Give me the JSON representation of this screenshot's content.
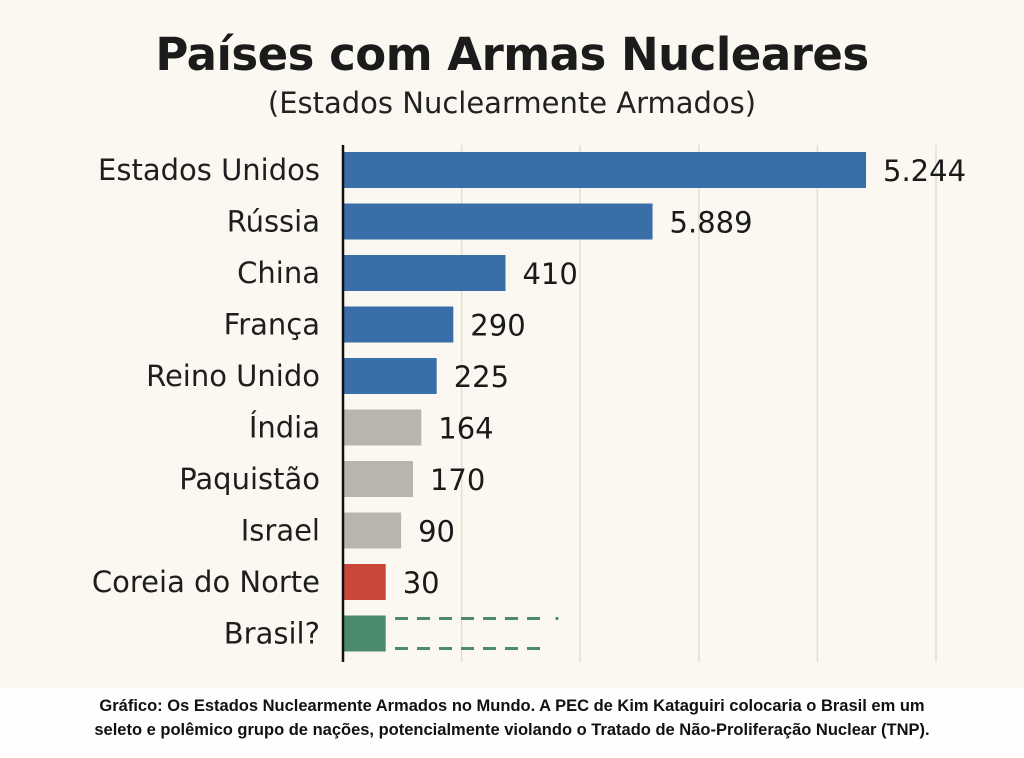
{
  "chart_data": {
    "type": "bar",
    "orientation": "horizontal",
    "title": "Países com Armas Nucleares",
    "subtitle": "(Estados Nuclearmente Armados)",
    "categories": [
      "Estados Unidos",
      "Rússia",
      "China",
      "França",
      "Reino Unido",
      "Índia",
      "Paquistão",
      "Israel",
      "Coreia do Norte",
      "Brasil?"
    ],
    "value_labels": [
      "5.244",
      "5.889",
      "410",
      "290",
      "225",
      "164",
      "170",
      "90",
      "30",
      ""
    ],
    "bar_lengths": [
      4.41,
      2.61,
      1.37,
      0.93,
      0.79,
      0.66,
      0.59,
      0.49,
      0.36,
      0.36
    ],
    "bar_length_note_units": "relative axis units, one per gridline",
    "colors": [
      "#3a6ea9",
      "#3a6ea9",
      "#3a6ea9",
      "#3a6ea9",
      "#3a6ea9",
      "#b8b5af",
      "#b8b5af",
      "#b8b5af",
      "#c8473a",
      "#4b8a6b"
    ],
    "xlim": [
      0,
      5.6
    ],
    "gridlines": [
      1,
      2,
      3,
      4,
      5
    ],
    "grid": true,
    "xlabel": "",
    "ylabel": ""
  },
  "caption": {
    "line1": "Gráfico: Os Estados Nuclearmente Armados no Mundo. A PEC de Kim Kataguiri colocaria o Brasil em um",
    "line2": "seleto e polêmico grupo de nações, potencialmente violando o Tratado de Não-Proliferação Nuclear (TNP)."
  }
}
